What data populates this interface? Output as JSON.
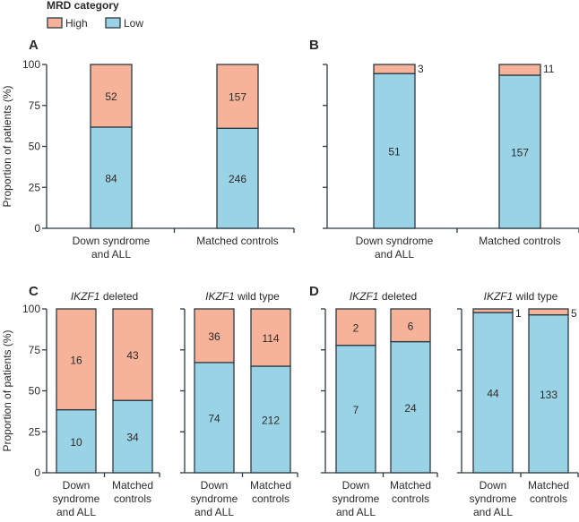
{
  "legend": {
    "title": "MRD category",
    "items": [
      {
        "label": "High",
        "color": "#f7b39a"
      },
      {
        "label": "Low",
        "color": "#9bd3e6"
      }
    ]
  },
  "colors": {
    "high": "#f7b39a",
    "low": "#9bd3e6",
    "axis": "#2b3a42"
  },
  "chart_data": [
    {
      "type": "bar",
      "stacked": true,
      "panel": "A",
      "subtitle": "",
      "ylabel": "Proportion of patients (%)",
      "ylim": [
        0,
        100
      ],
      "yticks": [
        0,
        25,
        50,
        75,
        100
      ],
      "categories": [
        "Down syndrome and ALL",
        "Matched controls"
      ],
      "series": [
        {
          "name": "Low",
          "values": [
            84,
            246
          ]
        },
        {
          "name": "High",
          "values": [
            52,
            157
          ]
        }
      ]
    },
    {
      "type": "bar",
      "stacked": true,
      "panel": "B",
      "subtitle": "",
      "ylabel": "",
      "ylim": [
        0,
        100
      ],
      "yticks": [
        0,
        25,
        50,
        75,
        100
      ],
      "categories": [
        "Down syndrome and ALL",
        "Matched controls"
      ],
      "series": [
        {
          "name": "Low",
          "values": [
            51,
            157
          ]
        },
        {
          "name": "High",
          "values": [
            3,
            11
          ]
        }
      ]
    },
    {
      "type": "bar",
      "stacked": true,
      "panel": "C",
      "subtitle": "IKZF1 deleted",
      "ylabel": "Proportion of patients (%)",
      "ylim": [
        0,
        100
      ],
      "yticks": [
        0,
        25,
        50,
        75,
        100
      ],
      "categories": [
        "Down syndrome and ALL",
        "Matched controls"
      ],
      "series": [
        {
          "name": "Low",
          "values": [
            10,
            34
          ]
        },
        {
          "name": "High",
          "values": [
            16,
            43
          ]
        }
      ]
    },
    {
      "type": "bar",
      "stacked": true,
      "panel": "",
      "subtitle": "IKZF1 wild type",
      "ylabel": "",
      "ylim": [
        0,
        100
      ],
      "yticks": [
        0,
        25,
        50,
        75,
        100
      ],
      "categories": [
        "Down syndrome and ALL",
        "Matched controls"
      ],
      "series": [
        {
          "name": "Low",
          "values": [
            74,
            212
          ]
        },
        {
          "name": "High",
          "values": [
            36,
            114
          ]
        }
      ]
    },
    {
      "type": "bar",
      "stacked": true,
      "panel": "D",
      "subtitle": "IKZF1 deleted",
      "ylabel": "",
      "ylim": [
        0,
        100
      ],
      "yticks": [
        0,
        25,
        50,
        75,
        100
      ],
      "categories": [
        "Down syndrome and ALL",
        "Matched controls"
      ],
      "series": [
        {
          "name": "Low",
          "values": [
            7,
            24
          ]
        },
        {
          "name": "High",
          "values": [
            2,
            6
          ]
        }
      ]
    },
    {
      "type": "bar",
      "stacked": true,
      "panel": "",
      "subtitle": "IKZF1 wild type",
      "ylabel": "",
      "ylim": [
        0,
        100
      ],
      "yticks": [
        0,
        25,
        50,
        75,
        100
      ],
      "categories": [
        "Down syndrome and ALL",
        "Matched controls"
      ],
      "series": [
        {
          "name": "Low",
          "values": [
            44,
            133
          ]
        },
        {
          "name": "High",
          "values": [
            1,
            5
          ]
        }
      ]
    }
  ]
}
